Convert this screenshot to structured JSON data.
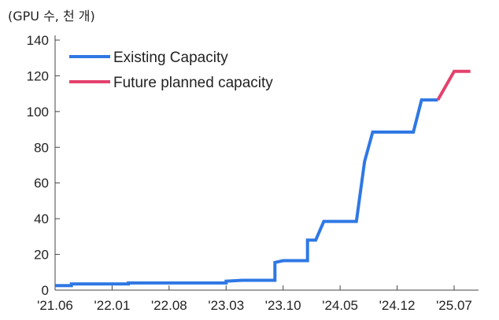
{
  "chart_data": {
    "type": "line",
    "unit_label": "(GPU 수, 천 개)",
    "title": "",
    "xlabel": "",
    "ylabel": "",
    "ylim": [
      0,
      140
    ],
    "yticks": [
      "0",
      "20",
      "40",
      "60",
      "80",
      "100",
      "120",
      "140"
    ],
    "xlim": [
      "2021-06",
      "2025-10"
    ],
    "xticks": [
      {
        "label": "'21.06",
        "x": "2021-06"
      },
      {
        "label": "'22.01",
        "x": "2022-01"
      },
      {
        "label": "'22.08",
        "x": "2022-08"
      },
      {
        "label": "'23.03",
        "x": "2023-03"
      },
      {
        "label": "'23.10",
        "x": "2023-10"
      },
      {
        "label": "'24.05",
        "x": "2024-05"
      },
      {
        "label": "'24.12",
        "x": "2024-12"
      },
      {
        "label": "'25.07",
        "x": "2025-07"
      }
    ],
    "grid": false,
    "legend_position": "top-left",
    "series": [
      {
        "name": "Existing Capacity",
        "color": "#2f78e4",
        "points": [
          {
            "x": "2021-06",
            "y": 2.5
          },
          {
            "x": "2021-08",
            "y": 2.5
          },
          {
            "x": "2021-08",
            "y": 3.5
          },
          {
            "x": "2022-03",
            "y": 3.5
          },
          {
            "x": "2022-03",
            "y": 4
          },
          {
            "x": "2023-03",
            "y": 4
          },
          {
            "x": "2023-03",
            "y": 5
          },
          {
            "x": "2023-05",
            "y": 5.5
          },
          {
            "x": "2023-09",
            "y": 5.5
          },
          {
            "x": "2023-09",
            "y": 15.5
          },
          {
            "x": "2023-10",
            "y": 16.5
          },
          {
            "x": "2024-01",
            "y": 16.5
          },
          {
            "x": "2024-01",
            "y": 28
          },
          {
            "x": "2024-02",
            "y": 28
          },
          {
            "x": "2024-03",
            "y": 38.5
          },
          {
            "x": "2024-07",
            "y": 38.5
          },
          {
            "x": "2024-08",
            "y": 72
          },
          {
            "x": "2024-09",
            "y": 88.5
          },
          {
            "x": "2025-02",
            "y": 88.5
          },
          {
            "x": "2025-03",
            "y": 106.5
          },
          {
            "x": "2025-05",
            "y": 106.5
          }
        ]
      },
      {
        "name": "Future planned capacity",
        "color": "#e3426d",
        "points": [
          {
            "x": "2025-05",
            "y": 106.5
          },
          {
            "x": "2025-07",
            "y": 122.5
          },
          {
            "x": "2025-09",
            "y": 122.5
          }
        ]
      }
    ]
  }
}
